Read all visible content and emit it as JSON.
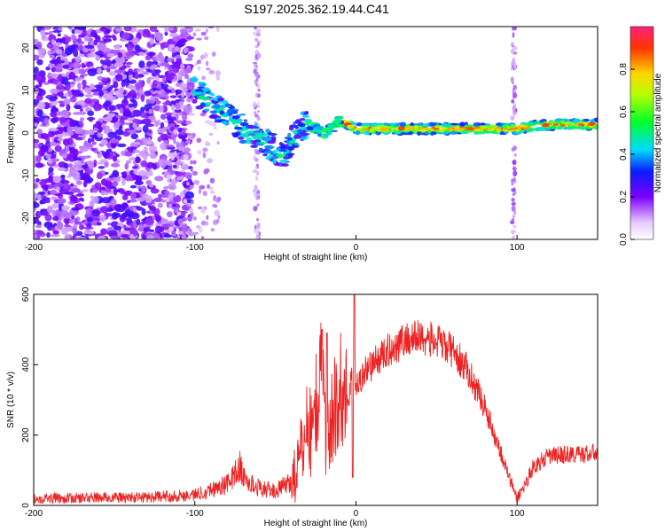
{
  "title": "S197.2025.362.19.44.C41",
  "chart_data": [
    {
      "type": "heatmap",
      "xlabel": "Height of straight line (km)",
      "ylabel": "Frequency (Hz)",
      "xlim": [
        -200,
        150
      ],
      "ylim": [
        -25,
        25
      ],
      "xticks": [
        "-200",
        "-100",
        "0",
        "100"
      ],
      "xtick_values": [
        -200,
        -100,
        0,
        100
      ],
      "yticks": [
        "-20",
        "-10",
        "0",
        "10",
        "20"
      ],
      "ytick_values": [
        -20,
        -10,
        0,
        10,
        20
      ],
      "colorbar": {
        "label": "Normalized spectral amplitude",
        "range": [
          0,
          1
        ],
        "ticks": [
          "0.0",
          "0.2",
          "0.4",
          "0.6",
          "0.8"
        ],
        "tick_values": [
          0,
          0.2,
          0.4,
          0.6,
          0.8
        ]
      },
      "ridge": {
        "description_points_x": [
          -100,
          -90,
          -80,
          -70,
          -60,
          -50,
          -45,
          -40,
          -35,
          -30,
          -25,
          -20,
          -15,
          -10,
          0,
          20,
          40,
          60,
          80,
          100,
          120,
          150
        ],
        "description_points_freq": [
          10,
          7,
          4,
          1,
          -1,
          -4,
          -6,
          -2,
          1,
          2,
          1,
          0,
          1,
          3,
          1,
          1,
          1,
          1,
          1,
          1,
          2,
          2
        ],
        "peak_amplitude_range_x": [
          -10,
          150
        ],
        "peak_amplitude": 1.0
      }
    },
    {
      "type": "line",
      "xlabel": "Height of straight line (km)",
      "ylabel": "SNR (10 * v/v)",
      "xlim": [
        -200,
        150
      ],
      "ylim": [
        0,
        600
      ],
      "xticks": [
        "-200",
        "-100",
        "0",
        "100"
      ],
      "xtick_values": [
        -200,
        -100,
        0,
        100
      ],
      "yticks": [
        "0",
        "200",
        "400",
        "600"
      ],
      "ytick_values": [
        0,
        200,
        400,
        600
      ],
      "color": "#ee2222",
      "series": [
        {
          "name": "SNR",
          "x": [
            -200,
            -180,
            -160,
            -140,
            -120,
            -100,
            -90,
            -80,
            -75,
            -72,
            -70,
            -65,
            -60,
            -50,
            -40,
            -35,
            -30,
            -28,
            -25,
            -22,
            -20,
            -18,
            -15,
            -10,
            -5,
            -2,
            0,
            5,
            10,
            20,
            30,
            40,
            50,
            60,
            70,
            80,
            90,
            95,
            100,
            105,
            110,
            120,
            130,
            140,
            150
          ],
          "y": [
            20,
            20,
            22,
            22,
            25,
            30,
            45,
            60,
            90,
            110,
            80,
            60,
            50,
            40,
            70,
            120,
            250,
            200,
            280,
            350,
            300,
            150,
            250,
            330,
            300,
            380,
            330,
            380,
            400,
            440,
            470,
            480,
            465,
            440,
            380,
            280,
            150,
            80,
            20,
            60,
            110,
            140,
            145,
            145,
            150
          ]
        }
      ],
      "spikes": [
        {
          "x": -21,
          "y": 500
        },
        {
          "x": -18,
          "y": 490
        },
        {
          "x": -1,
          "y": 600
        }
      ],
      "sharp_dip": {
        "x": -2,
        "y": 80
      }
    }
  ]
}
